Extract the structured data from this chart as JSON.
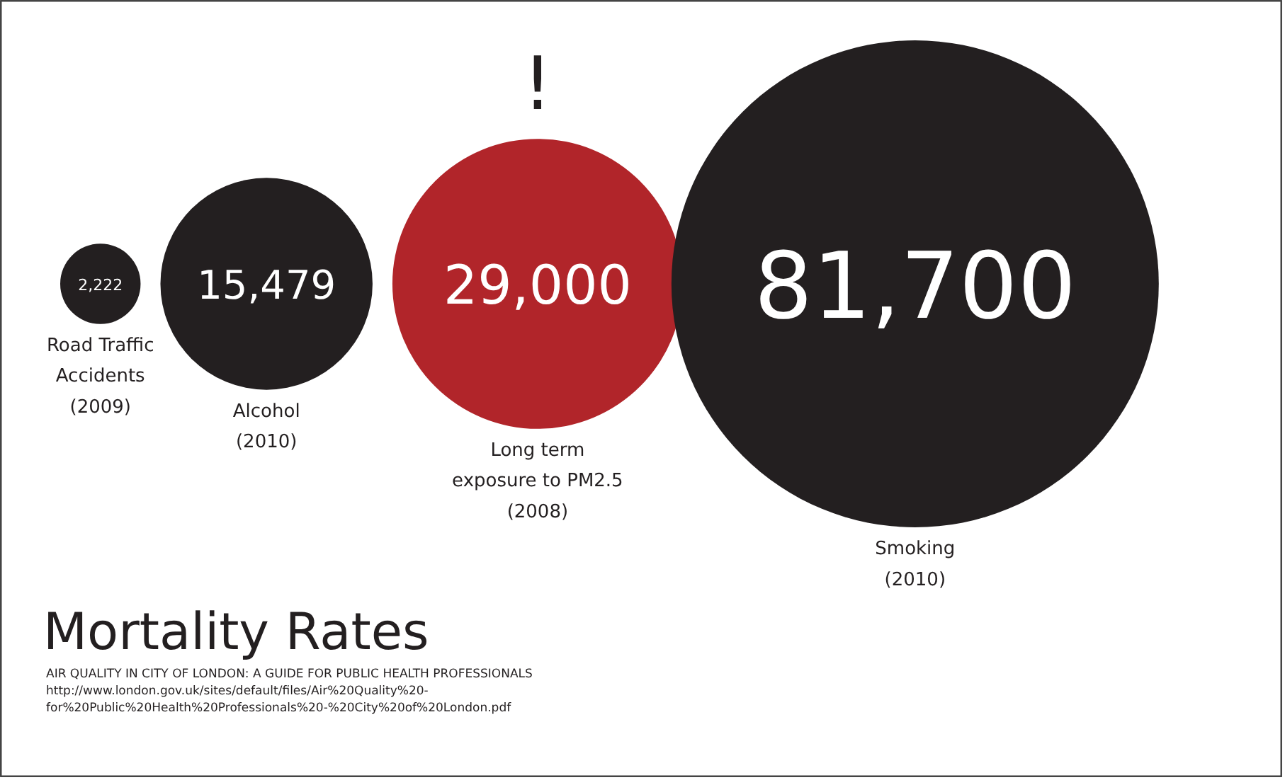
{
  "chart_data": {
    "type": "other",
    "title": "Mortality Rates",
    "categories": [
      "Road Traffic\nAccidents\n(2009)",
      "Alcohol\n(2010)",
      "Long term\nexposure to PM2.5\n(2008)",
      "Smoking\n(2010)"
    ],
    "values": [
      2222,
      15479,
      29000,
      81700
    ],
    "colors": [
      "#231f20",
      "#231f20",
      "#b1252a",
      "#231f20"
    ],
    "value_labels": [
      "2,222",
      "15,479",
      "29,000",
      "81,700"
    ],
    "annotations": [
      {
        "text": "!",
        "x": "Long term\nexposure to PM2.5\n(2008)"
      },
      "AIR QUALITY IN CITY OF LONDON: A GUIDE FOR PUBLIC HEALTH PROFESSIONALS\nhttp://www.london.gov.uk/sites/default/files/Air%20Quality%20-\nfor%20Public%20Health%20Professionals%20-%20City%20of%20London.pdf"
    ]
  }
}
